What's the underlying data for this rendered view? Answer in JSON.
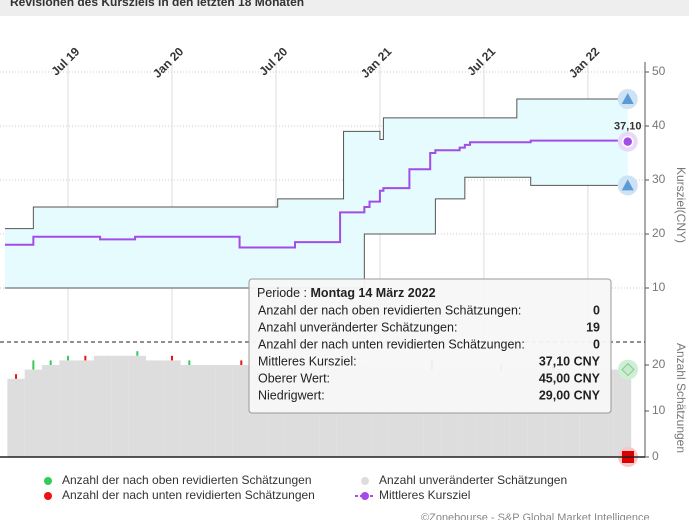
{
  "chart_data": [
    {
      "type": "line",
      "title": "Revisionen des Kursziels in den letzten 18 Monaten",
      "y_label": "Kursziel(CNY)",
      "step": true,
      "grid": true,
      "xlim": [
        -3.7,
        33.4
      ],
      "xticks": [
        {
          "value": 0,
          "label": "Jul 19"
        },
        {
          "value": 6,
          "label": "Jan 20"
        },
        {
          "value": 12,
          "label": "Jul 20"
        },
        {
          "value": 18,
          "label": "Jan 21"
        },
        {
          "value": 24,
          "label": "Jul 21"
        },
        {
          "value": 30,
          "label": "Jan 22"
        }
      ],
      "ylim": [
        0,
        55
      ],
      "yticks": [
        10,
        20,
        30,
        40,
        50
      ],
      "x": [
        -3.64,
        -2.0,
        1.85,
        3.87,
        9.9,
        12.1,
        13.1,
        15.7,
        15.9,
        17.1,
        17.4,
        18.0,
        18.2,
        19.7,
        20.9,
        21.2,
        22.6,
        22.9,
        23.2,
        25.9,
        26.7,
        32.3
      ],
      "band": {
        "color": "#e6fbfd",
        "line_color": "#555",
        "upper": [
          21,
          25,
          25,
          25,
          25,
          26.5,
          26.5,
          26.5,
          39,
          39,
          39,
          37.5,
          41.5,
          41.5,
          41.5,
          41.5,
          41.5,
          41.5,
          41.5,
          45,
          45,
          45
        ],
        "lower": [
          10,
          10,
          10,
          10,
          10,
          10,
          10,
          10,
          10,
          20,
          20,
          20,
          20,
          20,
          20,
          26.5,
          26.5,
          30.5,
          30.5,
          30.5,
          29,
          29
        ]
      },
      "series": [
        {
          "name": "Mittleres Kursziel",
          "color": "#a14de8",
          "values": [
            18,
            19.5,
            19,
            19.5,
            17.5,
            17.5,
            18.5,
            24,
            24,
            25,
            26,
            28,
            28.5,
            32,
            35,
            35.5,
            36,
            36.5,
            37,
            37,
            37.3,
            37.1
          ],
          "value_labels": [
            null,
            null,
            null,
            null,
            null,
            null,
            null,
            null,
            null,
            null,
            null,
            null,
            null,
            null,
            null,
            null,
            null,
            null,
            null,
            null,
            null,
            "37,10"
          ]
        }
      ]
    },
    {
      "type": "bar",
      "stacked": true,
      "y_label": "Anzahl Schätzungen",
      "xlim": [
        -3.7,
        33.4
      ],
      "ylim": [
        0,
        25
      ],
      "yticks": [
        0,
        10,
        20
      ],
      "x": [
        -3,
        -2,
        -1,
        0,
        1,
        2,
        3,
        4,
        5,
        6,
        7,
        8,
        9,
        10,
        11,
        12,
        13,
        14,
        15,
        16,
        17,
        18,
        19,
        20,
        21,
        22,
        23,
        24,
        25,
        26,
        27,
        28,
        29,
        30,
        31,
        32
      ],
      "series": [
        {
          "name": "Anzahl der nach unten revidierten Schätzungen",
          "color": "#ee1111",
          "values": [
            1,
            0,
            0,
            0,
            1,
            0,
            0,
            0,
            0,
            1,
            0,
            0,
            0,
            1,
            0,
            0,
            0,
            0,
            2,
            0,
            0,
            0,
            0,
            0,
            2,
            0,
            0,
            0,
            1,
            0,
            0,
            1,
            0,
            0,
            0,
            0
          ]
        },
        {
          "name": "Anzahl unveränderter Schätzungen",
          "color": "#dddddd",
          "values": [
            17,
            19,
            20,
            21,
            21,
            22,
            22,
            22,
            21,
            21,
            20,
            20,
            20,
            20,
            20,
            20,
            19,
            20,
            19,
            19,
            20,
            19,
            19,
            19,
            19,
            19,
            19,
            19,
            19,
            19,
            19,
            19,
            19,
            19,
            19,
            19
          ]
        },
        {
          "name": "Anzahl der nach oben revidierten Schätzungen",
          "color": "#33cc55",
          "values": [
            0,
            2,
            1,
            1,
            0,
            0,
            0,
            1,
            0,
            0,
            1,
            0,
            0,
            0,
            0,
            0,
            0,
            1,
            0,
            0,
            0,
            0,
            0,
            0,
            0,
            0,
            0,
            0,
            0,
            0,
            0,
            0,
            0,
            1,
            0,
            0
          ]
        }
      ]
    }
  ],
  "tooltip": {
    "period_label": "Periode : ",
    "period": "Montag 14 März 2022",
    "rows": [
      [
        "Anzahl der nach oben revidierten Schätzungen:",
        "0"
      ],
      [
        "Anzahl unveränderter Schätzungen:",
        "19"
      ],
      [
        "Anzahl der nach unten revidierten Schätzungen:",
        "0"
      ],
      [
        "Mittleres Kursziel:",
        "37,10 CNY"
      ],
      [
        "Oberer Wert:",
        "45,00 CNY"
      ],
      [
        "Niedrigwert:",
        "29,00 CNY"
      ]
    ]
  },
  "footer": "©Zonebourse - S&P Global Market Intelligence"
}
